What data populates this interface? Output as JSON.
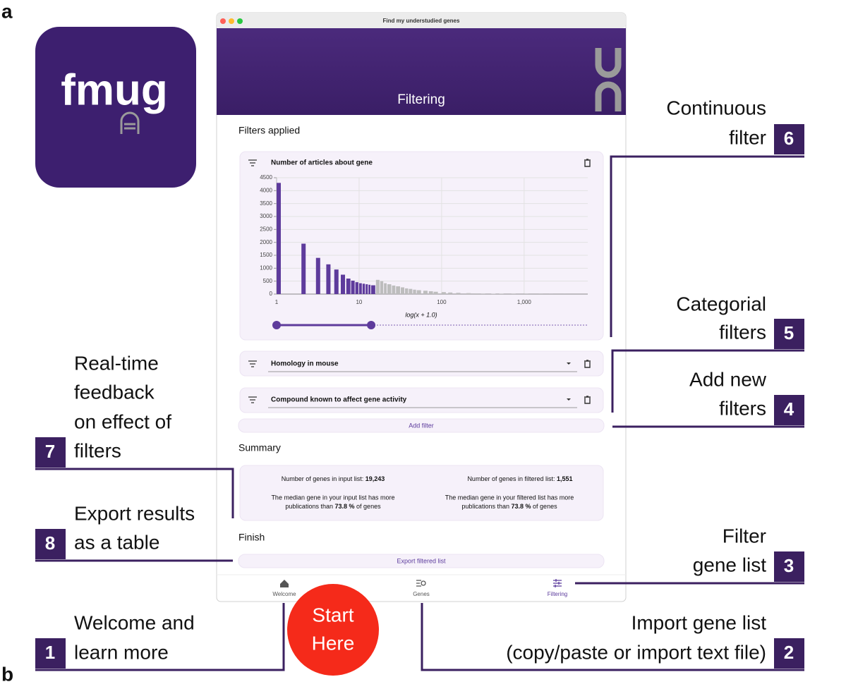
{
  "figure_labels": [
    "a",
    "b"
  ],
  "logo": "fmug",
  "window": {
    "title": "Find my understudied genes",
    "header": "Filtering"
  },
  "filters_heading": "Filters applied",
  "chart_data": {
    "type": "bar",
    "title": "Number of articles about gene",
    "x_label": "log(x + 1.0)",
    "x": [
      1,
      2,
      3,
      4,
      5,
      6,
      7,
      8,
      9,
      10,
      11,
      12,
      13,
      14,
      16,
      18,
      20,
      22,
      25,
      28,
      32,
      36,
      40,
      45,
      50,
      60,
      70,
      80,
      100,
      120,
      150,
      200,
      250,
      300,
      400,
      500,
      700,
      1000,
      1500,
      2000,
      3000
    ],
    "values": [
      4300,
      1950,
      1400,
      1150,
      950,
      750,
      600,
      520,
      460,
      420,
      400,
      380,
      360,
      340,
      550,
      500,
      420,
      380,
      330,
      300,
      260,
      220,
      200,
      170,
      150,
      130,
      110,
      90,
      75,
      60,
      48,
      36,
      26,
      20,
      14,
      10,
      7,
      5,
      3,
      2,
      1
    ],
    "xscale": "log",
    "xlim": [
      1,
      5900
    ],
    "xticks": [
      1,
      10,
      100,
      {
        "value": 1000,
        "label": "1,000"
      }
    ],
    "ylim": [
      0,
      4500
    ],
    "yticks": [
      0,
      500,
      1000,
      1500,
      2000,
      2500,
      3000,
      3500,
      4000,
      4500
    ],
    "grid": true,
    "selection": [
      1,
      14
    ],
    "colors": {
      "selected": "#5e3b9c",
      "unselected": "#bdbdbd"
    }
  },
  "categorical_filters": [
    "Homology in mouse",
    "Compound known to affect gene activity"
  ],
  "add_filter": "Add filter",
  "summary": {
    "heading": "Summary",
    "input": {
      "label": "Number of genes in input list:",
      "count": "19,243",
      "line1": "The median gene in your input list has more",
      "line2_start": "publications than",
      "percent": "73.8 %",
      "line2_end": "of genes"
    },
    "filtered": {
      "label": "Number of genes in filtered list:",
      "count": "1,551",
      "line1": "The median gene in your filtered list has more",
      "line2_start": "publications than",
      "percent": "73.8 %",
      "line2_end": "of genes"
    }
  },
  "finish": {
    "heading": "Finish",
    "button": "Export filtered list"
  },
  "nav": [
    "Welcome",
    "Genes",
    "Filtering"
  ],
  "start_badge": [
    "Start",
    "Here"
  ],
  "annotations": [
    {
      "number": 6,
      "lines": [
        "Continuous",
        "filter"
      ]
    },
    {
      "number": 5,
      "lines": [
        "Categorial",
        "filters"
      ]
    },
    {
      "number": 4,
      "lines": [
        "Add new",
        "filters"
      ]
    },
    {
      "number": 3,
      "lines": [
        "Filter",
        "gene list"
      ]
    },
    {
      "number": 2,
      "lines": [
        "Import gene list",
        "(copy/paste or import text file)"
      ]
    },
    {
      "number": 7,
      "lines": [
        "Real-time",
        "feedback",
        "on effect of",
        "filters"
      ]
    },
    {
      "number": 8,
      "lines": [
        "Export results",
        "as a table"
      ]
    },
    {
      "number": 1,
      "lines": [
        "Welcome and",
        "learn more"
      ]
    }
  ]
}
